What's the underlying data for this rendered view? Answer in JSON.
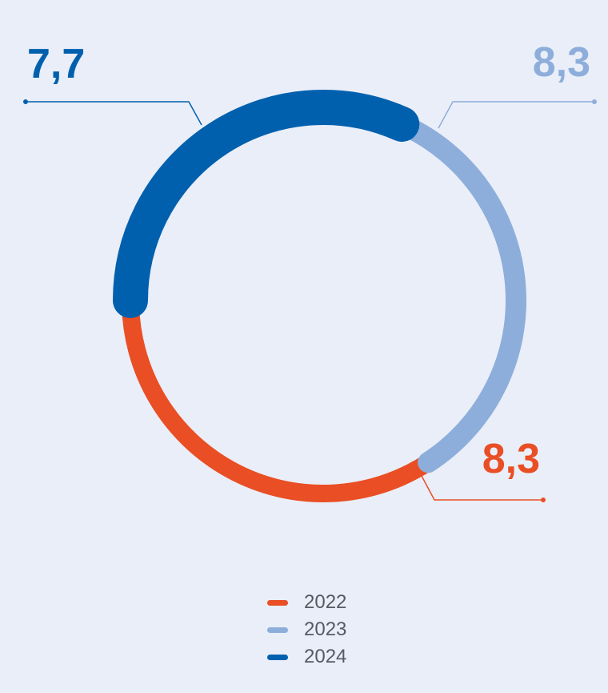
{
  "chart_data": {
    "type": "pie",
    "subtype": "donut",
    "series": [
      {
        "name": "2022",
        "value": 8.3,
        "label": "8,3",
        "color": "#e94e24"
      },
      {
        "name": "2023",
        "value": 8.3,
        "label": "8,3",
        "color": "#8daedb"
      },
      {
        "name": "2024",
        "value": 7.7,
        "label": "7,7",
        "color": "#0060ae"
      }
    ],
    "legend": {
      "placement": "bottom",
      "entries": [
        "2022",
        "2023",
        "2024"
      ]
    }
  }
}
